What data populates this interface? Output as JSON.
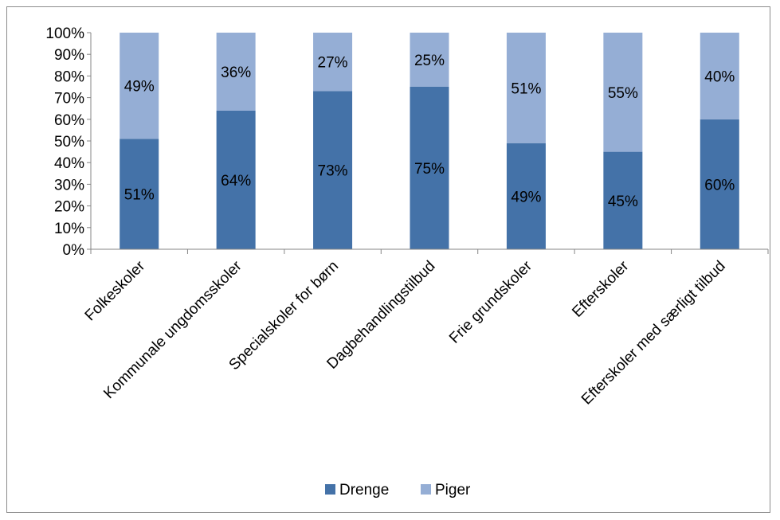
{
  "chart_data": {
    "type": "bar",
    "stacked": true,
    "percent_stacked": true,
    "title": "",
    "xlabel": "",
    "ylabel": "",
    "ylim": [
      0,
      100
    ],
    "y_ticks": [
      "0%",
      "10%",
      "20%",
      "30%",
      "40%",
      "50%",
      "60%",
      "70%",
      "80%",
      "90%",
      "100%"
    ],
    "grid": false,
    "legend_position": "bottom",
    "categories": [
      "Folkeskoler",
      "Kommunale ungdomsskoler",
      "Specialskoler for børn",
      "Dagbehandlingstilbud",
      "Frie grundskoler",
      "Efterskoler",
      "Efterskoler med særligt tilbud"
    ],
    "series": [
      {
        "name": "Drenge",
        "color": "#4472a8",
        "values": [
          51,
          64,
          73,
          75,
          49,
          45,
          60
        ],
        "labels": [
          "51%",
          "64%",
          "73%",
          "75%",
          "49%",
          "45%",
          "60%"
        ]
      },
      {
        "name": "Piger",
        "color": "#95aed5",
        "values": [
          49,
          36,
          27,
          25,
          51,
          55,
          40
        ],
        "labels": [
          "49%",
          "36%",
          "27%",
          "25%",
          "51%",
          "55%",
          "40%"
        ]
      }
    ]
  }
}
